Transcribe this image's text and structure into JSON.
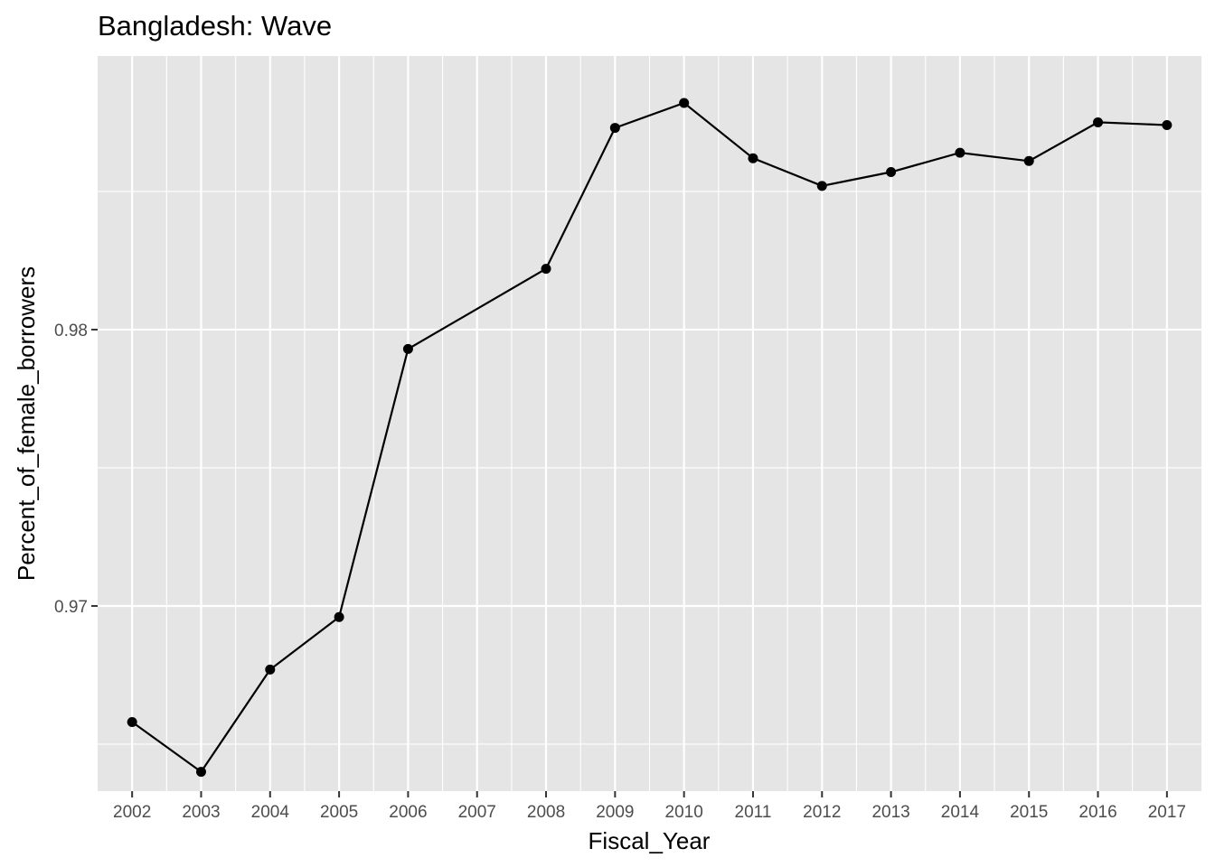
{
  "chart_data": {
    "type": "line",
    "title": "Bangladesh:  Wave",
    "xlabel": "Fiscal_Year",
    "ylabel": "Percent_of_female_borrowers",
    "x": [
      2002,
      2003,
      2004,
      2005,
      2006,
      2008,
      2009,
      2010,
      2011,
      2012,
      2013,
      2014,
      2015,
      2016,
      2017
    ],
    "series": [
      {
        "values": [
          0.9658,
          0.964,
          0.9677,
          0.9696,
          0.9793,
          0.9822,
          0.9873,
          0.9882,
          0.9862,
          0.9852,
          0.9857,
          0.9864,
          0.9861,
          0.9875,
          0.9874
        ]
      }
    ],
    "x_ticks": [
      2002,
      2003,
      2004,
      2005,
      2006,
      2007,
      2008,
      2009,
      2010,
      2011,
      2012,
      2013,
      2014,
      2015,
      2016,
      2017
    ],
    "y_ticks": [
      0.97,
      0.98
    ],
    "y_tick_labels": [
      "0.97",
      "0.98"
    ],
    "xlim": [
      2001.5,
      2017.5
    ],
    "ylim": [
      0.9633,
      0.9899
    ],
    "grid": true,
    "legend": "none",
    "colors": {
      "panel": "#e5e5e5",
      "grid": "#ffffff",
      "line": "#000000",
      "tick_label": "#4d4d4d"
    }
  }
}
